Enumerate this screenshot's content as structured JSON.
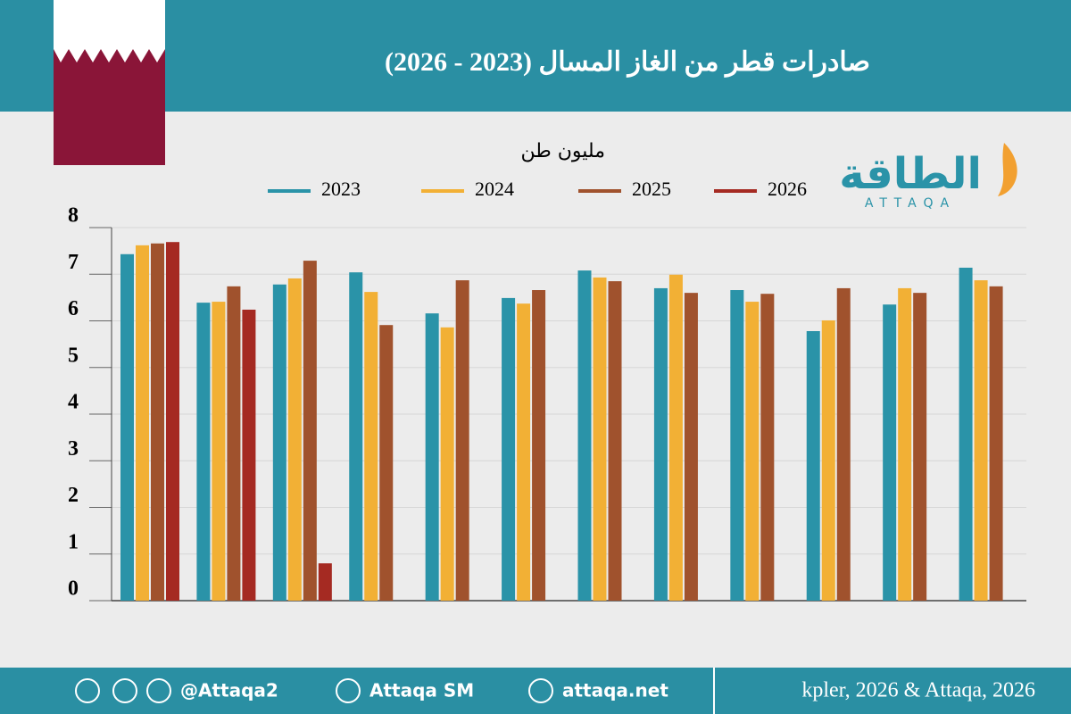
{
  "chart_data": {
    "type": "bar",
    "title": "صادرات قطر من الغاز المسال (2023 - 2026)",
    "y_label": "مليون طن",
    "categories": [
      null,
      null,
      null,
      null,
      null,
      null,
      null,
      null,
      null,
      null,
      null,
      null
    ],
    "series": [
      {
        "name": "2023",
        "color": "#2a93a8",
        "values": [
          7.43,
          6.39,
          6.78,
          7.04,
          6.16,
          6.49,
          7.08,
          6.7,
          6.66,
          5.78,
          6.35,
          7.14
        ]
      },
      {
        "name": "2024",
        "color": "#f2b035",
        "values": [
          7.62,
          6.41,
          6.91,
          6.62,
          5.86,
          6.37,
          6.93,
          6.99,
          6.41,
          6.01,
          6.7,
          6.87
        ]
      },
      {
        "name": "2025",
        "color": "#a0522d",
        "values": [
          7.66,
          6.74,
          7.29,
          5.91,
          6.87,
          6.66,
          6.85,
          6.6,
          6.58,
          6.7,
          6.6,
          6.74
        ]
      },
      {
        "name": "2026",
        "color": "#a52a22",
        "values": [
          7.69,
          6.24,
          0.8,
          null,
          null,
          null,
          null,
          null,
          null,
          null,
          null,
          null
        ]
      }
    ],
    "ylim": [
      0,
      8
    ],
    "yticks": [
      0,
      1,
      2,
      3,
      4,
      5,
      6,
      7,
      8
    ],
    "grid": true,
    "legend": "top",
    "source": "kpler, 2026 & Attaqa, 2026"
  },
  "logo": {
    "name": "الطاقة",
    "latin": "ATTAQA"
  },
  "footer": {
    "handle": "@Attaqa2",
    "youtube": "Attaqa SM",
    "site": "attaqa.net"
  }
}
